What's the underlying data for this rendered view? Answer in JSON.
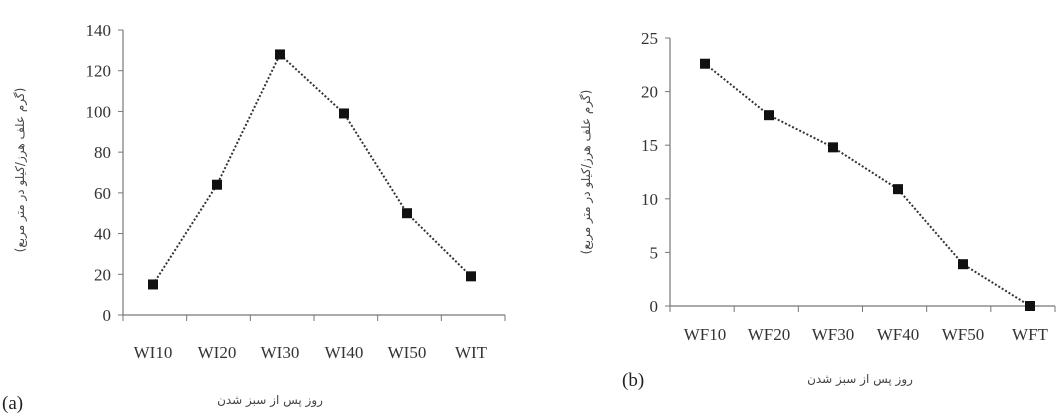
{
  "chart_data": [
    {
      "panel_label": "(a)",
      "type": "line",
      "categories": [
        "WI10",
        "WI20",
        "WI30",
        "WI40",
        "WI50",
        "WIT"
      ],
      "values": [
        15,
        64,
        128,
        99,
        50,
        19
      ],
      "ylabel": "(گرم علف هرز/کیلو در متر مربع)",
      "xlabel": "روز پس از سبز شدن",
      "ylim": [
        0,
        140
      ],
      "yticks": [
        0,
        20,
        40,
        60,
        80,
        100,
        120,
        140
      ],
      "line_style": "dotted",
      "marker": "square",
      "color": "#111111"
    },
    {
      "panel_label": "(b)",
      "type": "line",
      "categories": [
        "WF10",
        "WF20",
        "WF30",
        "WF40",
        "WF50",
        "WFT"
      ],
      "values": [
        22.6,
        17.8,
        14.8,
        10.9,
        3.9,
        0
      ],
      "ylabel": "(گرم علف هرز/کیلو در متر مربع)",
      "xlabel": "روز پس از سبز شدن",
      "ylim": [
        0,
        25
      ],
      "yticks": [
        0,
        5,
        10,
        15,
        20,
        25
      ],
      "line_style": "dotted",
      "marker": "square",
      "color": "#111111"
    }
  ]
}
